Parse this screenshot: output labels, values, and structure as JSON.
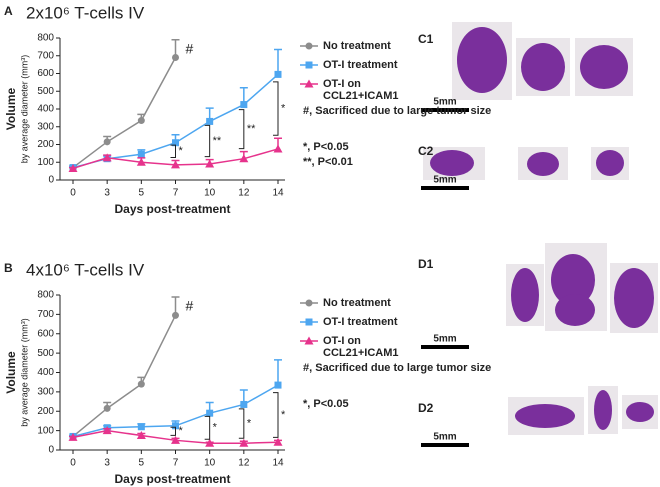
{
  "chart_data": [
    {
      "type": "line",
      "panel": "A",
      "title": "2x10⁶ T-cells IV",
      "ylabel": "Volume",
      "ylabel_sub": "by average diameter (mm³)",
      "xlabel": "Days post-treatment",
      "categories": [
        "0",
        "3",
        "5",
        "7",
        "10",
        "12",
        "14"
      ],
      "ylim": [
        0,
        800
      ],
      "yticks": [
        0,
        100,
        200,
        300,
        400,
        500,
        600,
        700,
        800
      ],
      "series": [
        {
          "name": "No treatment",
          "color": "#8c8c8c",
          "marker": "circle",
          "values": [
            70,
            215,
            335,
            690,
            null,
            null,
            null
          ],
          "errors": [
            8,
            30,
            35,
            100,
            null,
            null,
            null
          ]
        },
        {
          "name": "OT-I treatment",
          "color": "#4da6f0",
          "marker": "square",
          "values": [
            70,
            120,
            145,
            210,
            330,
            425,
            595
          ],
          "errors": [
            5,
            15,
            25,
            45,
            75,
            95,
            140
          ]
        },
        {
          "name": "OT-I on CCL21+ICAM1",
          "color": "#e6338c",
          "marker": "triangle",
          "values": [
            65,
            125,
            100,
            85,
            90,
            120,
            175
          ],
          "errors": [
            5,
            15,
            25,
            25,
            25,
            40,
            60
          ]
        }
      ],
      "marker_note": "#",
      "significance": [
        null,
        null,
        null,
        "*",
        "**",
        "**",
        "*"
      ],
      "notes": [
        "#, Sacrificed due to large tumor size",
        "*, P<0.05",
        "**, P<0.01"
      ]
    },
    {
      "type": "line",
      "panel": "B",
      "title": "4x10⁶ T-cells IV",
      "ylabel": "Volume",
      "ylabel_sub": "by average diameter (mm³)",
      "xlabel": "Days post-treatment",
      "categories": [
        "0",
        "3",
        "5",
        "7",
        "10",
        "12",
        "14"
      ],
      "ylim": [
        0,
        800
      ],
      "yticks": [
        0,
        100,
        200,
        300,
        400,
        500,
        600,
        700,
        800
      ],
      "series": [
        {
          "name": "No treatment",
          "color": "#8c8c8c",
          "marker": "circle",
          "values": [
            70,
            215,
            340,
            695,
            null,
            null,
            null
          ],
          "errors": [
            5,
            30,
            35,
            95,
            null,
            null,
            null
          ]
        },
        {
          "name": "OT-I treatment",
          "color": "#4da6f0",
          "marker": "square",
          "values": [
            70,
            115,
            120,
            125,
            190,
            235,
            335
          ],
          "errors": [
            5,
            10,
            15,
            25,
            55,
            75,
            130
          ]
        },
        {
          "name": "OT-I on CCL21+ICAM1",
          "color": "#e6338c",
          "marker": "triangle",
          "values": [
            65,
            100,
            75,
            50,
            35,
            35,
            40
          ],
          "errors": [
            5,
            10,
            10,
            10,
            5,
            10,
            10
          ]
        }
      ],
      "marker_note": "#",
      "significance": [
        null,
        null,
        null,
        "*",
        "*",
        "*",
        "*"
      ],
      "notes": [
        "#, Sacrificed due to large tumor size",
        "*, P<0.05"
      ]
    }
  ],
  "images": [
    {
      "label": "C1",
      "scale": "5mm"
    },
    {
      "label": "C2",
      "scale": "5mm"
    },
    {
      "label": "D1",
      "scale": "5mm"
    },
    {
      "label": "D2",
      "scale": "5mm"
    }
  ]
}
